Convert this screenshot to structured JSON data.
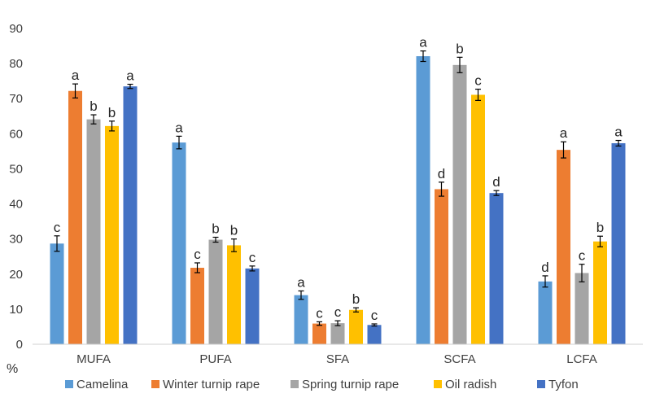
{
  "chart_data": {
    "type": "bar",
    "unit_label": "%",
    "ylim": [
      0,
      90
    ],
    "yticks": [
      0,
      10,
      20,
      30,
      40,
      50,
      60,
      70,
      80,
      90
    ],
    "grid": false,
    "legend_placement": "bottom",
    "categories": [
      "MUFA",
      "PUFA",
      "SFA",
      "SCFA",
      "LCFA"
    ],
    "series": [
      {
        "name": "Camelina",
        "color": "#5B9BD5",
        "values": [
          28.7,
          57.5,
          14.0,
          82.1,
          17.9
        ],
        "errors": [
          2.2,
          1.8,
          1.2,
          1.5,
          1.6
        ],
        "labels": [
          "c",
          "a",
          "a",
          "a",
          "d"
        ]
      },
      {
        "name": "Winter turnip rape",
        "color": "#ED7D31",
        "values": [
          72.2,
          21.8,
          5.9,
          44.2,
          55.4
        ],
        "errors": [
          2.0,
          1.4,
          0.5,
          2.0,
          2.3
        ],
        "labels": [
          "a",
          "c",
          "c",
          "d",
          "a"
        ]
      },
      {
        "name": "Spring turnip rape",
        "color": "#A5A5A5",
        "values": [
          64.1,
          29.8,
          6.0,
          79.6,
          20.3
        ],
        "errors": [
          1.3,
          0.7,
          0.7,
          2.2,
          2.5
        ],
        "labels": [
          "b",
          "b",
          "c",
          "b",
          "c"
        ]
      },
      {
        "name": "Oil radish",
        "color": "#FFC000",
        "values": [
          62.2,
          28.2,
          9.8,
          71.1,
          29.3
        ],
        "errors": [
          1.4,
          1.8,
          0.6,
          1.6,
          1.5
        ],
        "labels": [
          "b",
          "b",
          "b",
          "c",
          "b"
        ]
      },
      {
        "name": "Tyfon",
        "color": "#4472C4",
        "values": [
          73.5,
          21.6,
          5.5,
          43.1,
          57.3
        ],
        "errors": [
          0.6,
          0.7,
          0.3,
          0.7,
          0.8
        ],
        "labels": [
          "a",
          "c",
          "c",
          "d",
          "a"
        ]
      }
    ]
  }
}
